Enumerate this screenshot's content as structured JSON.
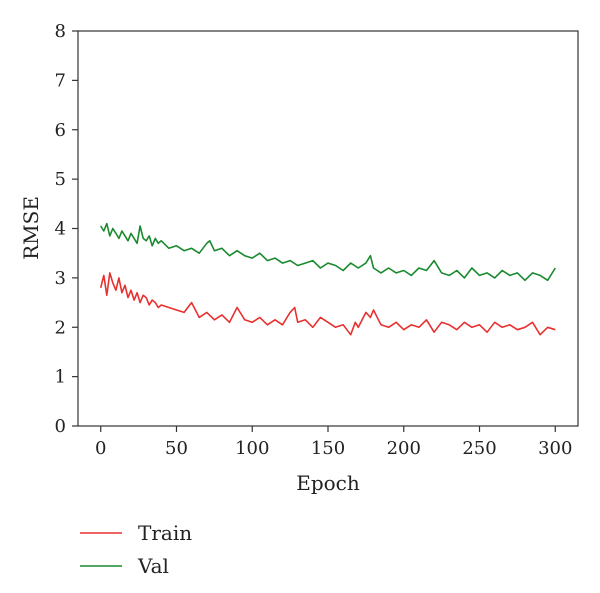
{
  "chart_data": {
    "type": "line",
    "title": "",
    "xlabel": "Epoch",
    "ylabel": "RMSE",
    "xlim": [
      -15,
      315
    ],
    "ylim": [
      0,
      8
    ],
    "xticks": [
      "0",
      "50",
      "100",
      "150",
      "200",
      "250",
      "300"
    ],
    "yticks": [
      "0",
      "1",
      "2",
      "3",
      "4",
      "5",
      "6",
      "7",
      "8"
    ],
    "grid": false,
    "legend_position": "bottom-left",
    "series": [
      {
        "name": "Train",
        "color": "#e8312f",
        "x": [
          0,
          2,
          4,
          6,
          8,
          10,
          12,
          14,
          16,
          18,
          20,
          22,
          24,
          26,
          28,
          30,
          32,
          34,
          36,
          38,
          40,
          45,
          50,
          55,
          60,
          65,
          70,
          75,
          80,
          85,
          90,
          95,
          100,
          105,
          110,
          115,
          120,
          125,
          128,
          130,
          135,
          140,
          145,
          150,
          155,
          160,
          165,
          168,
          170,
          175,
          178,
          180,
          185,
          190,
          195,
          200,
          205,
          210,
          215,
          220,
          225,
          230,
          235,
          240,
          245,
          250,
          255,
          260,
          265,
          270,
          275,
          280,
          285,
          290,
          295,
          300
        ],
        "values": [
          2.8,
          3.05,
          2.65,
          3.1,
          2.9,
          2.75,
          3.0,
          2.7,
          2.85,
          2.6,
          2.75,
          2.55,
          2.7,
          2.5,
          2.65,
          2.6,
          2.45,
          2.55,
          2.5,
          2.4,
          2.45,
          2.4,
          2.35,
          2.3,
          2.5,
          2.2,
          2.3,
          2.15,
          2.25,
          2.1,
          2.4,
          2.15,
          2.1,
          2.2,
          2.05,
          2.15,
          2.05,
          2.3,
          2.4,
          2.1,
          2.15,
          2.0,
          2.2,
          2.1,
          2.0,
          2.05,
          1.85,
          2.1,
          2.0,
          2.3,
          2.2,
          2.35,
          2.05,
          2.0,
          2.1,
          1.95,
          2.05,
          2.0,
          2.15,
          1.9,
          2.1,
          2.05,
          1.95,
          2.1,
          2.0,
          2.05,
          1.9,
          2.1,
          2.0,
          2.05,
          1.95,
          2.0,
          2.1,
          1.85,
          2.0,
          1.95
        ]
      },
      {
        "name": "Val",
        "color": "#1a8a2e",
        "x": [
          0,
          2,
          4,
          6,
          8,
          10,
          12,
          14,
          16,
          18,
          20,
          22,
          24,
          26,
          28,
          30,
          32,
          34,
          36,
          38,
          40,
          45,
          50,
          55,
          60,
          65,
          70,
          72,
          75,
          80,
          85,
          90,
          95,
          100,
          105,
          110,
          115,
          120,
          125,
          130,
          135,
          140,
          145,
          150,
          155,
          160,
          165,
          170,
          175,
          178,
          180,
          185,
          190,
          195,
          200,
          205,
          210,
          215,
          220,
          225,
          230,
          235,
          240,
          245,
          250,
          255,
          260,
          265,
          270,
          275,
          280,
          285,
          290,
          295,
          300
        ],
        "values": [
          4.05,
          3.95,
          4.1,
          3.85,
          4.0,
          3.9,
          3.8,
          3.95,
          3.85,
          3.75,
          3.9,
          3.8,
          3.7,
          4.05,
          3.8,
          3.75,
          3.85,
          3.65,
          3.8,
          3.7,
          3.75,
          3.6,
          3.65,
          3.55,
          3.6,
          3.5,
          3.7,
          3.75,
          3.55,
          3.6,
          3.45,
          3.55,
          3.45,
          3.4,
          3.5,
          3.35,
          3.4,
          3.3,
          3.35,
          3.25,
          3.3,
          3.35,
          3.2,
          3.3,
          3.25,
          3.15,
          3.3,
          3.2,
          3.3,
          3.45,
          3.2,
          3.1,
          3.2,
          3.1,
          3.15,
          3.05,
          3.2,
          3.15,
          3.35,
          3.1,
          3.05,
          3.15,
          3.0,
          3.2,
          3.05,
          3.1,
          3.0,
          3.15,
          3.05,
          3.1,
          2.95,
          3.1,
          3.05,
          2.95,
          3.2
        ]
      }
    ]
  }
}
